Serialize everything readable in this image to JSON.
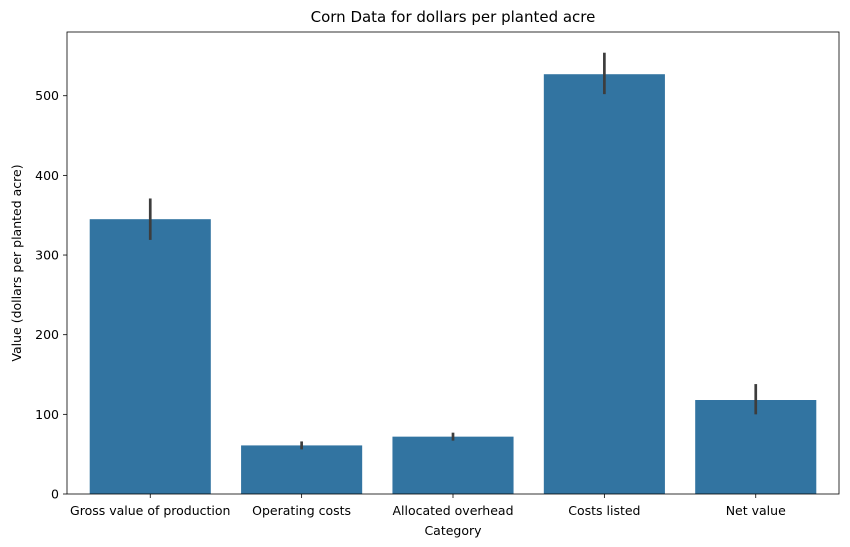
{
  "chart_data": {
    "type": "bar",
    "title": "Corn Data for dollars per planted acre",
    "xlabel": "Category",
    "ylabel": "Value (dollars per planted acre)",
    "categories": [
      "Gross value of production",
      "Operating costs",
      "Allocated overhead",
      "Costs listed",
      "Net value"
    ],
    "values": [
      345,
      61,
      72,
      527,
      118
    ],
    "error_low": [
      319,
      56,
      67,
      502,
      100
    ],
    "error_high": [
      371,
      66,
      77,
      554,
      138
    ],
    "ylim": [
      0,
      580
    ],
    "yticks": [
      0,
      100,
      200,
      300,
      400,
      500
    ],
    "grid": false,
    "legend": "none",
    "bar_color": "#3274a1",
    "error_color": "#3d3d3d"
  }
}
